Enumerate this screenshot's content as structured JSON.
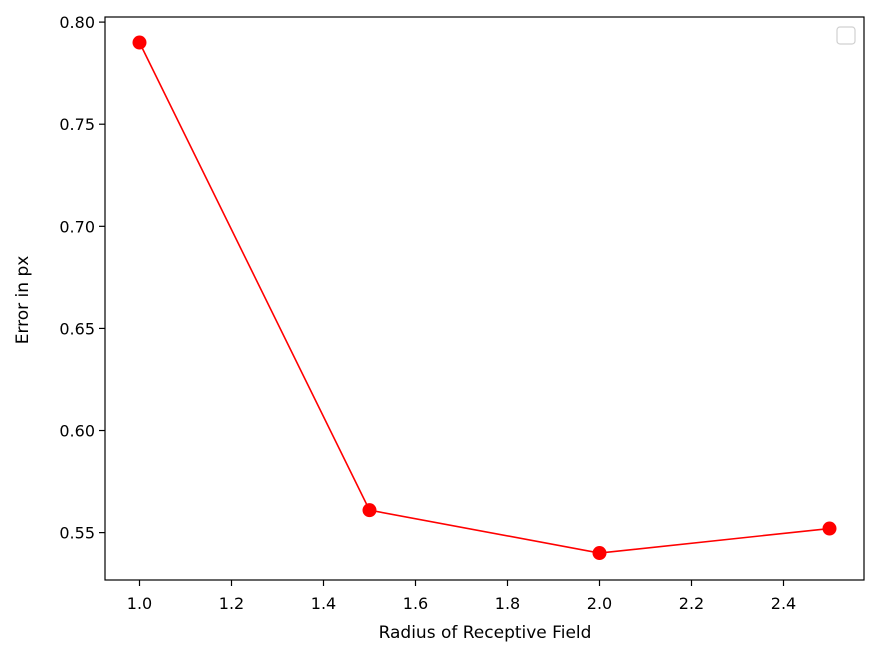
{
  "chart_data": {
    "type": "line",
    "title": "",
    "xlabel": "Radius of Receptive Field",
    "ylabel": "Error in px",
    "xlim": [
      0.925,
      2.575
    ],
    "ylim": [
      0.5268,
      0.8025
    ],
    "x_ticks": [
      1.0,
      1.2,
      1.4,
      1.6,
      1.8,
      2.0,
      2.2,
      2.4
    ],
    "x_tick_labels": [
      "1.0",
      "1.2",
      "1.4",
      "1.6",
      "1.8",
      "2.0",
      "2.2",
      "2.4"
    ],
    "y_ticks": [
      0.55,
      0.6,
      0.65,
      0.7,
      0.75,
      0.8
    ],
    "y_tick_labels": [
      "0.55",
      "0.60",
      "0.65",
      "0.70",
      "0.75",
      "0.80"
    ],
    "grid": false,
    "legend": {
      "position": "top-right",
      "entries": []
    },
    "series": [
      {
        "x": [
          1.0,
          1.5,
          2.0,
          2.5
        ],
        "y": [
          0.79,
          0.561,
          0.54,
          0.552
        ],
        "color": "#ff0000",
        "marker": "circle"
      }
    ]
  }
}
